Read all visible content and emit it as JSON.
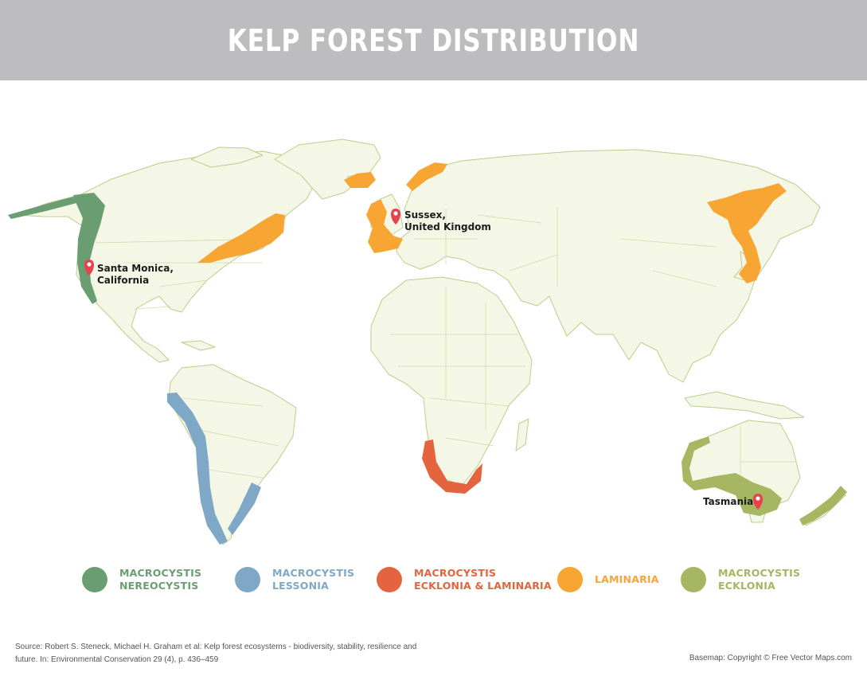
{
  "header": {
    "title": "KELP FOREST DISTRIBUTION"
  },
  "colors": {
    "header_bg": "#bdbdbf",
    "land": "#f5f7e6",
    "border": "#b9cf8a",
    "macrocystis_nereocystis": "#6a9e72",
    "macrocystis_lessonia": "#7ea8c6",
    "macrocystis_ecklonia_laminaria": "#e4643f",
    "laminaria": "#f7a634",
    "macrocystis_ecklonia": "#a6b661",
    "pin": "#e8424f"
  },
  "locations": [
    {
      "id": "santa-monica",
      "label_lines": [
        "Santa Monica,",
        "California"
      ]
    },
    {
      "id": "sussex",
      "label_lines": [
        "Sussex,",
        "United Kingdom"
      ]
    },
    {
      "id": "tasmania",
      "label_lines": [
        "Tasmania"
      ]
    }
  ],
  "legend": [
    {
      "id": "macrocystis-nereocystis",
      "label": "MACROCYSTIS\nNEREOCYSTIS",
      "color": "#6a9e72"
    },
    {
      "id": "macrocystis-lessonia",
      "label": "MACROCYSTIS\nLESSONIA",
      "color": "#7ea8c6"
    },
    {
      "id": "macrocystis-ecklonia-laminaria",
      "label": "MACROCYSTIS\nECKLONIA & LAMINARIA",
      "color": "#e4643f"
    },
    {
      "id": "laminaria",
      "label": "LAMINARIA",
      "color": "#f7a634"
    },
    {
      "id": "macrocystis-ecklonia",
      "label": "MACROCYSTIS\nECKLONIA",
      "color": "#a6b661"
    }
  ],
  "footer": {
    "source": "Source: Robert S. Steneck, Michael H. Graham et al: Kelp forest ecosystems - biodiversity, stability, resilience and future. In: Environmental Conservation 29 (4), p. 436–459",
    "basemap": "Basemap: Copyright © Free Vector Maps.com"
  }
}
